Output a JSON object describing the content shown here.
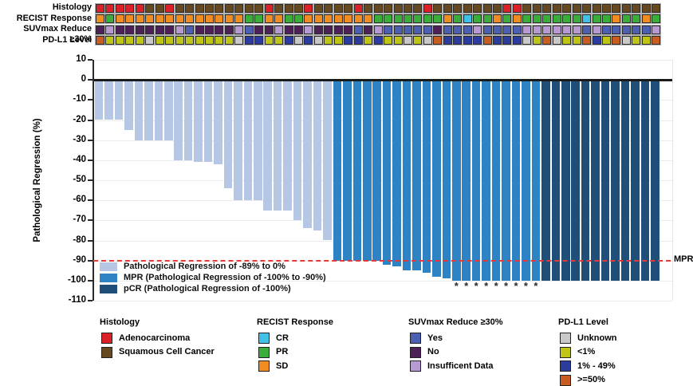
{
  "tracks": {
    "labels": [
      "Histology",
      "RECIST Response",
      "SUVmax Reduce ≥30%",
      "PD-L1 Level"
    ],
    "histology": [
      "A",
      "A",
      "A",
      "A",
      "A",
      "S",
      "S",
      "A",
      "S",
      "S",
      "S",
      "S",
      "S",
      "S",
      "S",
      "S",
      "S",
      "A",
      "S",
      "S",
      "S",
      "A",
      "S",
      "S",
      "S",
      "S",
      "A",
      "S",
      "S",
      "S",
      "S",
      "S",
      "S",
      "A",
      "S",
      "S",
      "S",
      "S",
      "S",
      "S",
      "S",
      "A",
      "A",
      "S",
      "S",
      "S",
      "S",
      "S",
      "S",
      "S",
      "S",
      "S",
      "S",
      "S",
      "S",
      "S",
      "S"
    ],
    "recist": [
      "SD",
      "PR",
      "SD",
      "SD",
      "SD",
      "SD",
      "SD",
      "SD",
      "SD",
      "SD",
      "SD",
      "SD",
      "SD",
      "SD",
      "SD",
      "PR",
      "PR",
      "SD",
      "SD",
      "PR",
      "PR",
      "SD",
      "SD",
      "SD",
      "SD",
      "SD",
      "SD",
      "SD",
      "PR",
      "PR",
      "PR",
      "PR",
      "PR",
      "PR",
      "PR",
      "SD",
      "PR",
      "CR",
      "PR",
      "PR",
      "SD",
      "PR",
      "SD",
      "PR",
      "PR",
      "PR",
      "PR",
      "PR",
      "PR",
      "CR",
      "PR",
      "PR",
      "SD",
      "PR",
      "PR",
      "SD",
      "PR"
    ],
    "suvmax": [
      "N",
      "I",
      "N",
      "N",
      "N",
      "N",
      "N",
      "N",
      "I",
      "Y",
      "N",
      "N",
      "N",
      "N",
      "I",
      "Y",
      "N",
      "N",
      "I",
      "N",
      "N",
      "I",
      "N",
      "N",
      "N",
      "N",
      "Y",
      "N",
      "I",
      "Y",
      "Y",
      "Y",
      "Y",
      "Y",
      "N",
      "Y",
      "Y",
      "Y",
      "I",
      "Y",
      "Y",
      "Y",
      "Y",
      "I",
      "I",
      "I",
      "I",
      "I",
      "I",
      "Y",
      "I",
      "Y",
      "Y",
      "Y",
      "Y",
      "Y",
      "I"
    ],
    "pdl1": [
      "H",
      "L",
      "L",
      "L",
      "L",
      "U",
      "L",
      "L",
      "L",
      "L",
      "L",
      "L",
      "L",
      "L",
      "U",
      "M",
      "M",
      "L",
      "L",
      "M",
      "U",
      "M",
      "U",
      "L",
      "L",
      "M",
      "M",
      "L",
      "M",
      "L",
      "L",
      "U",
      "L",
      "U",
      "H",
      "M",
      "M",
      "M",
      "M",
      "H",
      "M",
      "M",
      "M",
      "U",
      "L",
      "H",
      "U",
      "L",
      "L",
      "H",
      "M",
      "L",
      "H",
      "U",
      "L",
      "L",
      "H"
    ]
  },
  "palette": {
    "histology": {
      "A": "#da2128",
      "S": "#66491f"
    },
    "recist": {
      "SD": "#f18c21",
      "PR": "#3aad3a",
      "CR": "#41c0e8"
    },
    "suvmax": {
      "Y": "#4d5fb3",
      "N": "#4d2157",
      "I": "#b79ad1"
    },
    "pdl1": {
      "U": "#c9c9c9",
      "L": "#bfc515",
      "M": "#2c3c9e",
      "H": "#c95c20"
    },
    "bars": {
      "reg": "#b5c7e5",
      "mpr": "#2d83c4",
      "pcr": "#1f4e79"
    }
  },
  "chart_data": {
    "type": "bar",
    "title": "",
    "ylabel": "Pathological Regression (%)",
    "ylim": [
      10,
      -110
    ],
    "yticks": [
      10,
      0,
      -10,
      -20,
      -30,
      -40,
      -50,
      -60,
      -70,
      -80,
      -90,
      -100,
      -110
    ],
    "n_patients": 57,
    "values": [
      -20,
      -20,
      -20,
      -25,
      -30,
      -30,
      -30,
      -30,
      -40,
      -40,
      -41,
      -41,
      -42,
      -54,
      -60,
      -60,
      -60,
      -65,
      -65,
      -65,
      -70,
      -74,
      -75,
      -80,
      -90,
      -90,
      -90,
      -90,
      -90,
      -92,
      -93,
      -95,
      -95,
      -96,
      -98,
      -99,
      -100,
      -100,
      -100,
      -100,
      -100,
      -100,
      -100,
      -100,
      -100,
      -100,
      -100,
      -100,
      -100,
      -100,
      -100,
      -100,
      -100,
      -100,
      -100,
      -100,
      -100
    ],
    "bar_class": [
      "reg",
      "reg",
      "reg",
      "reg",
      "reg",
      "reg",
      "reg",
      "reg",
      "reg",
      "reg",
      "reg",
      "reg",
      "reg",
      "reg",
      "reg",
      "reg",
      "reg",
      "reg",
      "reg",
      "reg",
      "reg",
      "reg",
      "reg",
      "reg",
      "mpr",
      "mpr",
      "mpr",
      "mpr",
      "mpr",
      "mpr",
      "mpr",
      "mpr",
      "mpr",
      "mpr",
      "mpr",
      "mpr",
      "mpr",
      "mpr",
      "mpr",
      "mpr",
      "mpr",
      "mpr",
      "mpr",
      "mpr",
      "mpr",
      "pcr",
      "pcr",
      "pcr",
      "pcr",
      "pcr",
      "pcr",
      "pcr",
      "pcr",
      "pcr",
      "pcr",
      "pcr",
      "pcr"
    ],
    "asterisk_bars": [
      37,
      38,
      39,
      40,
      41,
      42,
      43,
      44,
      45
    ],
    "asterisk_symbol": "*",
    "mpr_line": {
      "value": -90,
      "label": "MPR",
      "color": "#e63939"
    },
    "legend": [
      {
        "class": "reg",
        "label": "Pathological Regression of -89% to 0%"
      },
      {
        "class": "mpr",
        "label": "MPR (Pathological Regression of -100% to -90%)"
      },
      {
        "class": "pcr",
        "label": "pCR (Pathological Regression of -100%)"
      }
    ],
    "legend_position": "inside-lower-left",
    "grid": true
  },
  "bottom_legends": [
    {
      "title": "Histology",
      "items": [
        {
          "label": "Adenocarcinoma",
          "color": "#da2128"
        },
        {
          "label": "Squamous Cell Cancer",
          "color": "#66491f"
        }
      ]
    },
    {
      "title": "RECIST Response",
      "items": [
        {
          "label": "CR",
          "color": "#41c0e8"
        },
        {
          "label": "PR",
          "color": "#3aad3a"
        },
        {
          "label": "SD",
          "color": "#f18c21"
        }
      ]
    },
    {
      "title": "SUVmax Reduce ≥30%",
      "items": [
        {
          "label": "Yes",
          "color": "#4d5fb3"
        },
        {
          "label": "No",
          "color": "#4d2157"
        },
        {
          "label": "Insufficent Data",
          "color": "#b79ad1"
        }
      ]
    },
    {
      "title": "PD-L1 Level",
      "items": [
        {
          "label": "Unknown",
          "color": "#c9c9c9"
        },
        {
          "label": "<1%",
          "color": "#bfc515"
        },
        {
          "label": "1% - 49%",
          "color": "#2c3c9e"
        },
        {
          "label": ">=50%",
          "color": "#c95c20"
        }
      ]
    }
  ]
}
